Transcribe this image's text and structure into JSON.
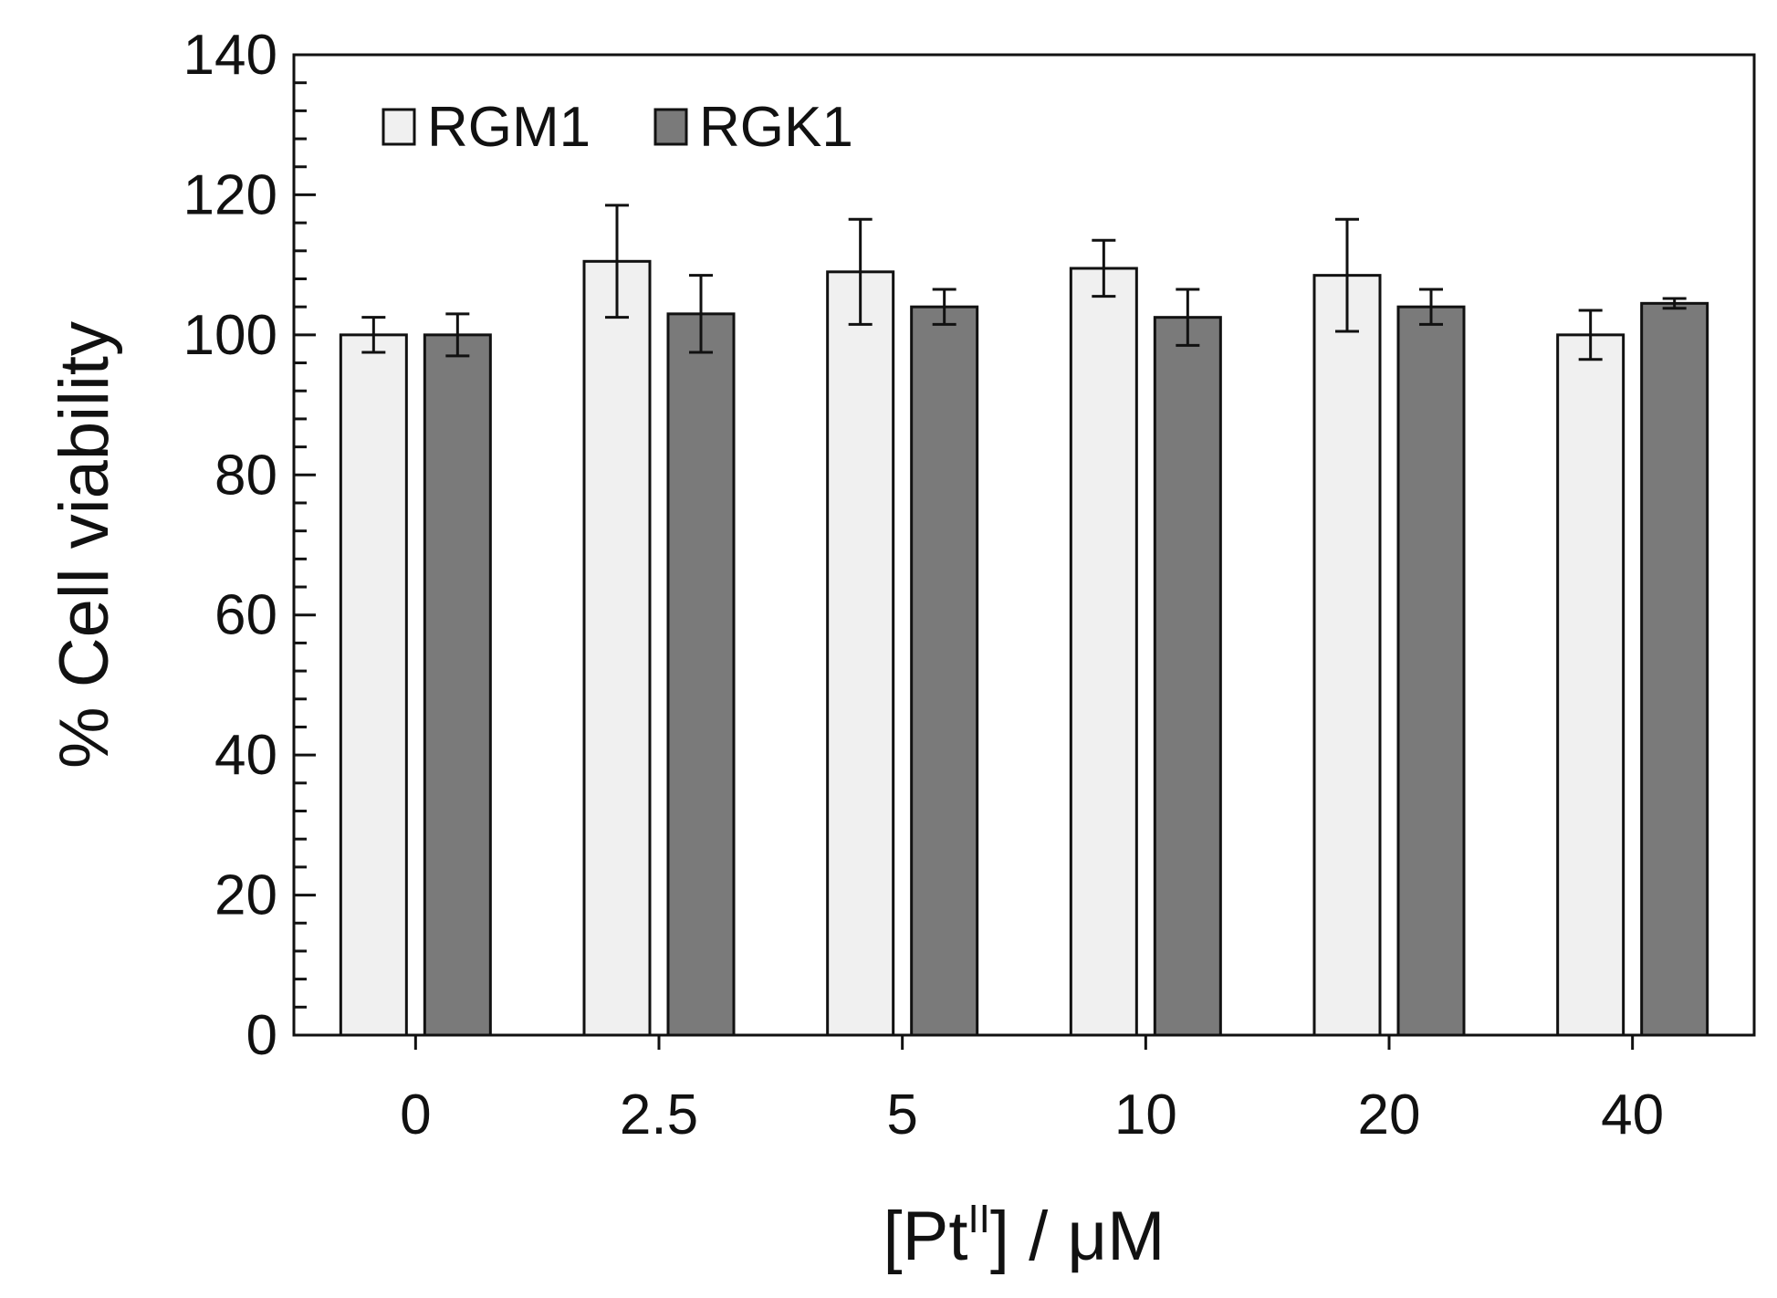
{
  "chart_data": {
    "type": "bar",
    "categories": [
      "0",
      "2.5",
      "5",
      "10",
      "20",
      "40"
    ],
    "series": [
      {
        "name": "RGM1",
        "color": "#f0f0f0",
        "values": [
          100,
          110.5,
          109,
          109.5,
          108.5,
          100
        ],
        "errors": [
          2.5,
          8,
          7.5,
          4,
          8,
          3.5
        ]
      },
      {
        "name": "RGK1",
        "color": "#7a7a7a",
        "values": [
          100,
          103,
          104,
          102.5,
          104,
          104.5
        ],
        "errors": [
          3,
          5.5,
          2.5,
          4,
          2.5,
          0.7
        ]
      }
    ],
    "xlabel": {
      "main": "[Pt",
      "superscript": "II",
      "rest": "] / μM"
    },
    "ylabel": "% Cell viability",
    "ylim": [
      0,
      140
    ],
    "yticks": [
      "0",
      "20",
      "40",
      "60",
      "80",
      "100",
      "120",
      "140"
    ],
    "legend_position": "top-left",
    "grid": false
  }
}
